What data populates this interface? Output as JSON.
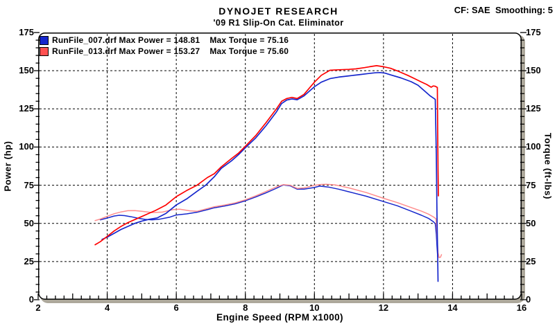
{
  "header": {
    "title": "DYNOJET RESEARCH",
    "subtitle": "'09 R1 Slip-On Cat. Eliminator",
    "correction": "CF: SAE  Smoothing: 5"
  },
  "chart_data": {
    "type": "line",
    "title": "DYNOJET RESEARCH",
    "subtitle": "'09 R1 Slip-On Cat. Eliminator",
    "correction_note": "CF: SAE  Smoothing: 5",
    "xlabel": "Engine Speed (RPM x1000)",
    "ylabel_left": "Power (hp)",
    "ylabel_right": "Torque (ft-lbs)",
    "xlim": [
      2,
      16
    ],
    "ylim": [
      0,
      175
    ],
    "xticks": [
      2,
      4,
      6,
      8,
      10,
      12,
      14,
      16
    ],
    "yticks": [
      0,
      25,
      50,
      75,
      100,
      125,
      150,
      175
    ],
    "x_minor_step": 0.25,
    "y_minor_step": 5,
    "grid_x": [
      4,
      6,
      8,
      10,
      12,
      14
    ],
    "grid_y": [
      25,
      50,
      75,
      100,
      125,
      150
    ],
    "grid_style": "dashed",
    "legend": {
      "position": "top-left",
      "entries": [
        {
          "run": "RunFile_007.drf",
          "max_power": 148.81,
          "max_torque": 75.16,
          "swatch_color": "#1526cc",
          "label": "RunFile_007.drf Max Power = 148.81    Max Torque = 75.16"
        },
        {
          "run": "RunFile_013.drf",
          "max_power": 153.27,
          "max_torque": 75.6,
          "swatch_color": "#ff5050",
          "label": "RunFile_013.drf Max Power = 153.27    Max Torque = 75.60"
        }
      ]
    },
    "series": [
      {
        "name": "RunFile_007 Torque",
        "unit": "ft-lbs",
        "color": "#1526cc",
        "width": 1.5,
        "points": [
          [
            3.8,
            52.3
          ],
          [
            4.0,
            53.5
          ],
          [
            4.2,
            54.8
          ],
          [
            4.35,
            55.3
          ],
          [
            4.5,
            55.1
          ],
          [
            4.7,
            54.3
          ],
          [
            4.9,
            53.3
          ],
          [
            5.1,
            52.6
          ],
          [
            5.3,
            52.3
          ],
          [
            5.5,
            52.7
          ],
          [
            5.8,
            54.0
          ],
          [
            6.0,
            55.5
          ],
          [
            6.3,
            56.2
          ],
          [
            6.6,
            57.3
          ],
          [
            6.9,
            59.0
          ],
          [
            7.1,
            60.2
          ],
          [
            7.4,
            61.4
          ],
          [
            7.7,
            62.8
          ],
          [
            8.0,
            64.8
          ],
          [
            8.3,
            67.3
          ],
          [
            8.6,
            70.0
          ],
          [
            8.9,
            73.0
          ],
          [
            9.1,
            75.2
          ],
          [
            9.3,
            74.6
          ],
          [
            9.5,
            72.4
          ],
          [
            9.7,
            72.4
          ],
          [
            10.0,
            73.5
          ],
          [
            10.15,
            74.4
          ],
          [
            10.4,
            73.8
          ],
          [
            10.7,
            72.4
          ],
          [
            11.0,
            70.7
          ],
          [
            11.5,
            67.8
          ],
          [
            12.0,
            64.3
          ],
          [
            12.4,
            61.5
          ],
          [
            12.8,
            58.0
          ],
          [
            13.1,
            55.3
          ],
          [
            13.3,
            53.3
          ],
          [
            13.45,
            51.0
          ],
          [
            13.5,
            49.8
          ],
          [
            13.53,
            43.0
          ],
          [
            13.55,
            35.0
          ],
          [
            13.57,
            28.0
          ]
        ]
      },
      {
        "name": "RunFile_013 Torque",
        "unit": "ft-lbs",
        "color": "#ff8d8d",
        "width": 1.5,
        "points": [
          [
            3.65,
            51.8
          ],
          [
            3.8,
            52.8
          ],
          [
            4.0,
            54.6
          ],
          [
            4.2,
            56.3
          ],
          [
            4.4,
            57.5
          ],
          [
            4.6,
            58.3
          ],
          [
            4.8,
            58.4
          ],
          [
            5.0,
            57.9
          ],
          [
            5.3,
            57.1
          ],
          [
            5.6,
            57.4
          ],
          [
            5.9,
            59.0
          ],
          [
            6.1,
            59.3
          ],
          [
            6.4,
            58.2
          ],
          [
            6.6,
            57.9
          ],
          [
            6.9,
            59.7
          ],
          [
            7.1,
            60.9
          ],
          [
            7.4,
            62.0
          ],
          [
            7.7,
            63.4
          ],
          [
            8.0,
            65.4
          ],
          [
            8.3,
            68.0
          ],
          [
            8.6,
            70.9
          ],
          [
            8.9,
            73.9
          ],
          [
            9.1,
            75.4
          ],
          [
            9.3,
            75.0
          ],
          [
            9.5,
            72.9
          ],
          [
            9.7,
            73.2
          ],
          [
            10.0,
            74.9
          ],
          [
            10.2,
            75.5
          ],
          [
            10.35,
            75.6
          ],
          [
            10.6,
            75.2
          ],
          [
            11.0,
            73.2
          ],
          [
            11.5,
            70.2
          ],
          [
            12.0,
            66.4
          ],
          [
            12.4,
            63.6
          ],
          [
            12.8,
            60.4
          ],
          [
            13.1,
            58.0
          ],
          [
            13.3,
            56.1
          ],
          [
            13.45,
            54.2
          ],
          [
            13.52,
            53.0
          ],
          [
            13.54,
            47.0
          ],
          [
            13.56,
            38.0
          ],
          [
            13.58,
            31.0
          ],
          [
            13.61,
            27.5
          ],
          [
            13.65,
            27.8
          ],
          [
            13.68,
            29.5
          ]
        ]
      },
      {
        "name": "RunFile_007 Power",
        "unit": "hp",
        "color": "#1526cc",
        "width": 1.7,
        "points": [
          [
            3.85,
            39.5
          ],
          [
            4.0,
            41.0
          ],
          [
            4.2,
            43.5
          ],
          [
            4.4,
            46.0
          ],
          [
            4.6,
            48.0
          ],
          [
            4.8,
            50.0
          ],
          [
            5.0,
            51.5
          ],
          [
            5.2,
            52.6
          ],
          [
            5.45,
            53.6
          ],
          [
            5.7,
            56.5
          ],
          [
            6.0,
            62.0
          ],
          [
            6.3,
            66.0
          ],
          [
            6.6,
            71.0
          ],
          [
            6.85,
            75.0
          ],
          [
            7.1,
            80.5
          ],
          [
            7.3,
            86.0
          ],
          [
            7.6,
            91.0
          ],
          [
            7.8,
            95.0
          ],
          [
            8.0,
            99.5
          ],
          [
            8.3,
            106.0
          ],
          [
            8.6,
            114.0
          ],
          [
            8.9,
            123.0
          ],
          [
            9.05,
            128.5
          ],
          [
            9.2,
            130.8
          ],
          [
            9.35,
            131.5
          ],
          [
            9.5,
            131.0
          ],
          [
            9.7,
            133.5
          ],
          [
            10.0,
            139.5
          ],
          [
            10.2,
            142.5
          ],
          [
            10.45,
            144.8
          ],
          [
            10.7,
            145.8
          ],
          [
            11.0,
            146.6
          ],
          [
            11.3,
            147.4
          ],
          [
            11.55,
            148.1
          ],
          [
            11.75,
            148.6
          ],
          [
            11.9,
            148.8
          ],
          [
            12.05,
            148.4
          ],
          [
            12.2,
            147.3
          ],
          [
            12.5,
            145.3
          ],
          [
            12.8,
            142.8
          ],
          [
            13.0,
            140.5
          ],
          [
            13.2,
            136.5
          ],
          [
            13.35,
            133.5
          ],
          [
            13.45,
            132.0
          ],
          [
            13.5,
            131.2
          ],
          [
            13.53,
            95.0
          ],
          [
            13.55,
            55.0
          ],
          [
            13.57,
            28.0
          ],
          [
            13.58,
            12.0
          ]
        ]
      },
      {
        "name": "RunFile_013 Power",
        "unit": "hp",
        "color": "#ff0000",
        "width": 1.7,
        "points": [
          [
            3.65,
            36.0
          ],
          [
            3.8,
            38.0
          ],
          [
            4.0,
            41.5
          ],
          [
            4.2,
            45.0
          ],
          [
            4.4,
            48.0
          ],
          [
            4.6,
            50.5
          ],
          [
            4.8,
            52.5
          ],
          [
            5.0,
            54.5
          ],
          [
            5.2,
            56.5
          ],
          [
            5.4,
            58.5
          ],
          [
            5.7,
            62.0
          ],
          [
            6.0,
            67.5
          ],
          [
            6.3,
            71.5
          ],
          [
            6.6,
            75.0
          ],
          [
            6.9,
            80.0
          ],
          [
            7.1,
            82.5
          ],
          [
            7.3,
            87.0
          ],
          [
            7.6,
            92.5
          ],
          [
            7.8,
            96.0
          ],
          [
            8.0,
            100.5
          ],
          [
            8.3,
            107.5
          ],
          [
            8.6,
            116.0
          ],
          [
            8.9,
            125.0
          ],
          [
            9.05,
            130.0
          ],
          [
            9.2,
            131.8
          ],
          [
            9.35,
            132.5
          ],
          [
            9.5,
            131.8
          ],
          [
            9.7,
            134.5
          ],
          [
            10.0,
            142.5
          ],
          [
            10.2,
            147.0
          ],
          [
            10.45,
            150.3
          ],
          [
            10.7,
            150.6
          ],
          [
            11.0,
            150.9
          ],
          [
            11.2,
            151.2
          ],
          [
            11.45,
            152.0
          ],
          [
            11.6,
            152.6
          ],
          [
            11.8,
            153.3
          ],
          [
            12.0,
            152.6
          ],
          [
            12.2,
            151.6
          ],
          [
            12.4,
            149.9
          ],
          [
            12.7,
            147.0
          ],
          [
            12.9,
            144.8
          ],
          [
            13.1,
            142.6
          ],
          [
            13.25,
            141.0
          ],
          [
            13.38,
            139.2
          ],
          [
            13.44,
            140.0
          ],
          [
            13.5,
            139.8
          ],
          [
            13.56,
            139.0
          ],
          [
            13.57,
            110.0
          ],
          [
            13.58,
            85.0
          ],
          [
            13.59,
            68.0
          ]
        ]
      }
    ],
    "frame": {
      "border_color": "#000000",
      "shadow_color": "#ada89b",
      "background": "#ffffff"
    }
  }
}
